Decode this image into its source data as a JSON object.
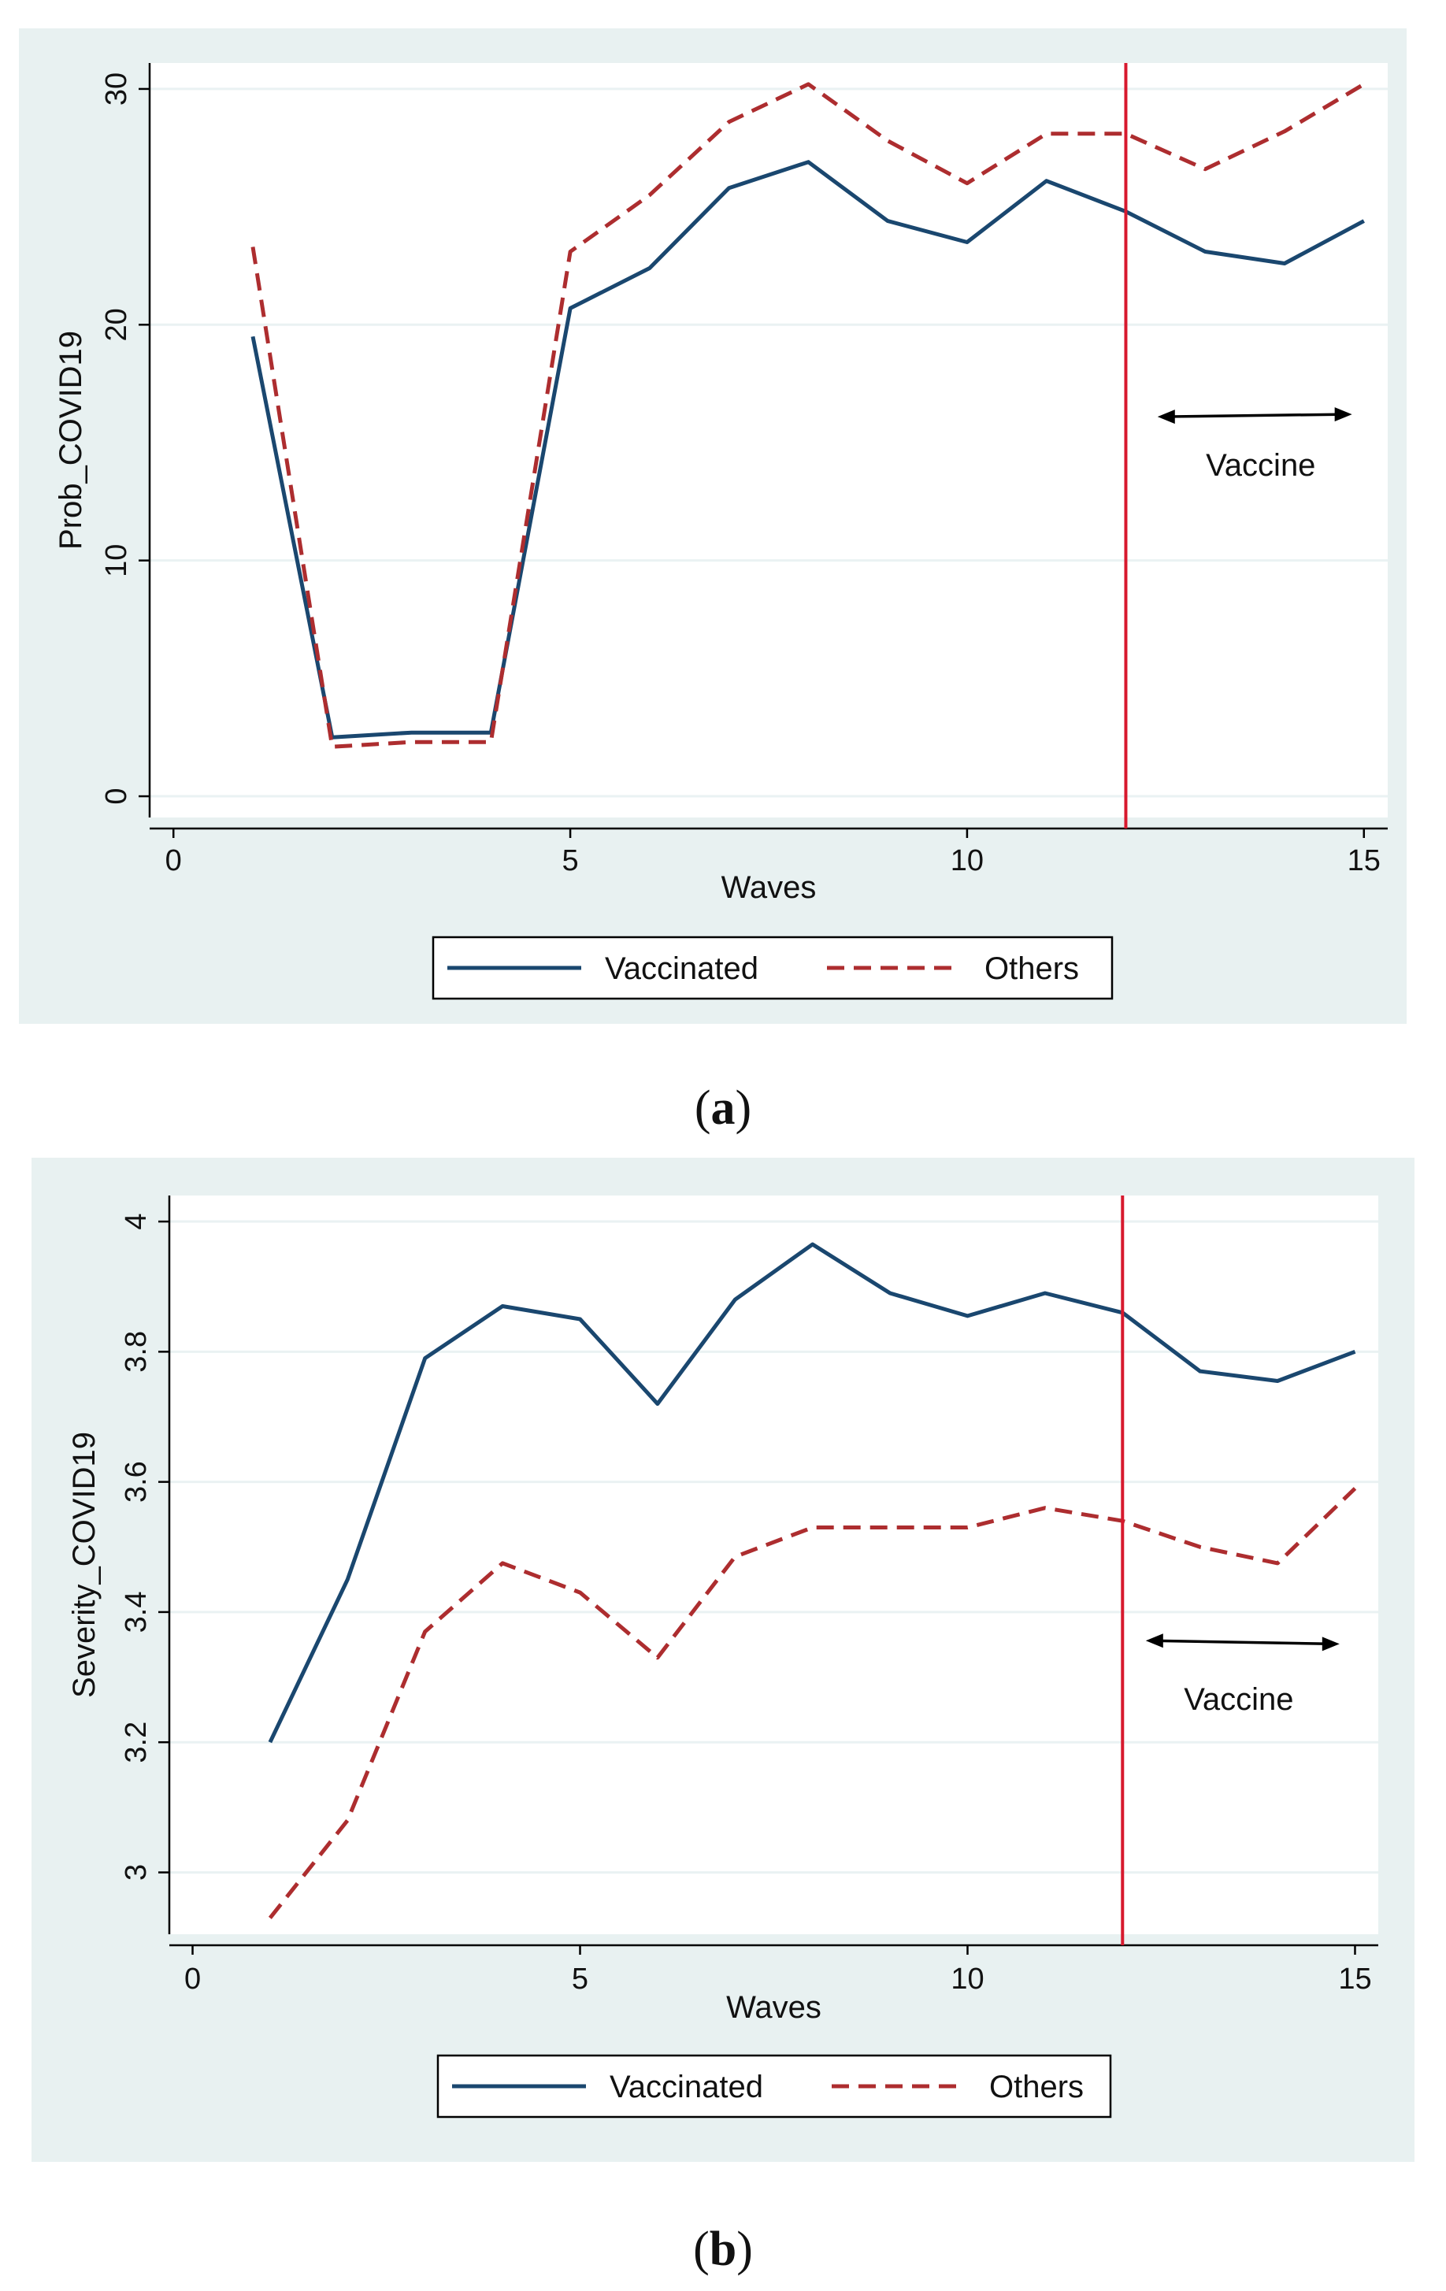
{
  "chart_data": [
    {
      "type": "line",
      "caption": "a",
      "xlabel": "Waves",
      "ylabel": "Prob_COVID19",
      "xlim": [
        -0.3,
        15.3
      ],
      "ylim": [
        -0.9,
        31.1
      ],
      "xticks": [
        "0",
        "5",
        "10",
        "15"
      ],
      "yticks": [
        "0",
        "10",
        "20",
        "30"
      ],
      "grid": true,
      "legend_position": "bottom",
      "vline_x": 12,
      "vline_color": "#d7192e",
      "annotation": {
        "text": "Vaccine",
        "arrow_from_x": 12.4,
        "arrow_to_x": 14.85,
        "arrow_y_from": 16.1,
        "arrow_y_to": 16.2,
        "text_x": 13.7,
        "text_y": 13.6
      },
      "x": [
        1,
        2,
        3,
        4,
        5,
        6,
        7,
        8,
        9,
        10,
        11,
        12,
        13,
        14,
        15
      ],
      "series": [
        {
          "name": "Vaccinated",
          "color": "#1a476f",
          "dash": "solid",
          "values": [
            19.5,
            2.5,
            2.7,
            2.7,
            20.7,
            22.4,
            25.8,
            26.9,
            24.4,
            23.5,
            26.1,
            24.8,
            23.1,
            22.6,
            24.4
          ]
        },
        {
          "name": "Others",
          "color": "#ad2d2f",
          "dash": "dashed",
          "values": [
            23.3,
            2.1,
            2.3,
            2.3,
            23.1,
            25.5,
            28.6,
            30.2,
            27.8,
            26.0,
            28.1,
            28.1,
            26.6,
            28.2,
            30.2
          ]
        }
      ]
    },
    {
      "type": "line",
      "caption": "b",
      "xlabel": "Waves",
      "ylabel": "Severity_COVID19",
      "xlim": [
        -0.3,
        15.3
      ],
      "ylim": [
        2.905,
        4.04
      ],
      "xticks": [
        "0",
        "5",
        "10",
        "15"
      ],
      "yticks": [
        "3",
        "3.2",
        "3.4",
        "3.6",
        "3.8",
        "4"
      ],
      "grid": true,
      "legend_position": "bottom",
      "vline_x": 12,
      "vline_color": "#d7192e",
      "annotation": {
        "text": "Vaccine",
        "arrow_from_x": 12.3,
        "arrow_to_x": 14.8,
        "arrow_y_from": 3.356,
        "arrow_y_to": 3.351,
        "text_x": 13.5,
        "text_y": 3.25
      },
      "x": [
        1,
        2,
        3,
        4,
        5,
        6,
        7,
        8,
        9,
        10,
        11,
        12,
        13,
        14,
        15
      ],
      "series": [
        {
          "name": "Vaccinated",
          "color": "#1a476f",
          "dash": "solid",
          "values": [
            3.2,
            3.45,
            3.79,
            3.87,
            3.85,
            3.72,
            3.88,
            3.965,
            3.89,
            3.855,
            3.89,
            3.86,
            3.77,
            3.755,
            3.8
          ]
        },
        {
          "name": "Others",
          "color": "#ad2d2f",
          "dash": "dashed",
          "values": [
            2.93,
            3.08,
            3.37,
            3.475,
            3.43,
            3.33,
            3.485,
            3.53,
            3.53,
            3.53,
            3.56,
            3.54,
            3.5,
            3.475,
            3.59
          ]
        }
      ]
    }
  ],
  "captions": [
    "a",
    "b"
  ],
  "colors": {
    "panel_background": "#e8f1f1",
    "plot_background": "#ffffff",
    "grid": "#eaf2f3",
    "axis": "#000000"
  }
}
